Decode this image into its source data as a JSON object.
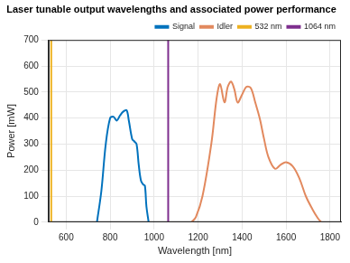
{
  "chart_data": {
    "type": "line",
    "title": "Laser tunable output wavelengths and associated power performance",
    "x_label": "Wavelength [nm]",
    "y_label": "Power [mW]",
    "xlim": [
      520,
      1850
    ],
    "xticks": [
      600,
      800,
      1000,
      1200,
      1400,
      1600,
      1800
    ],
    "ylim": [
      0,
      700
    ],
    "yticks": [
      0,
      100,
      200,
      300,
      400,
      500,
      600,
      700
    ],
    "grid": true,
    "legend": "upper right",
    "series": [
      {
        "name": "Signal",
        "color": "#0072bd",
        "line_style": "solid",
        "x": [
          740,
          760,
          780,
          800,
          815,
          830,
          845,
          860,
          875,
          885,
          900,
          910,
          920,
          930,
          940,
          950,
          958,
          965,
          975
        ],
        "values": [
          0,
          120,
          300,
          400,
          405,
          390,
          410,
          425,
          430,
          390,
          320,
          310,
          300,
          220,
          160,
          145,
          140,
          60,
          0
        ]
      },
      {
        "name": "Idler",
        "color": "#e2895e",
        "line_style": "solid",
        "x": [
          1170,
          1190,
          1220,
          1260,
          1285,
          1300,
          1320,
          1335,
          1350,
          1365,
          1380,
          1400,
          1420,
          1440,
          1460,
          1480,
          1500,
          1520,
          1550,
          1575,
          1600,
          1630,
          1660,
          1690,
          1720,
          1745,
          1760
        ],
        "values": [
          0,
          20,
          100,
          300,
          480,
          530,
          460,
          520,
          540,
          510,
          460,
          490,
          520,
          515,
          460,
          400,
          320,
          250,
          205,
          220,
          230,
          215,
          170,
          100,
          50,
          15,
          0
        ]
      },
      {
        "name": "532 nm",
        "color": "#edb120",
        "line_style": "solid",
        "x": [
          532,
          532
        ],
        "values": [
          0,
          700
        ]
      },
      {
        "name": "1064 nm",
        "color": "#7e2f8e",
        "line_style": "solid",
        "x": [
          1064,
          1064
        ],
        "values": [
          0,
          700
        ]
      }
    ]
  }
}
